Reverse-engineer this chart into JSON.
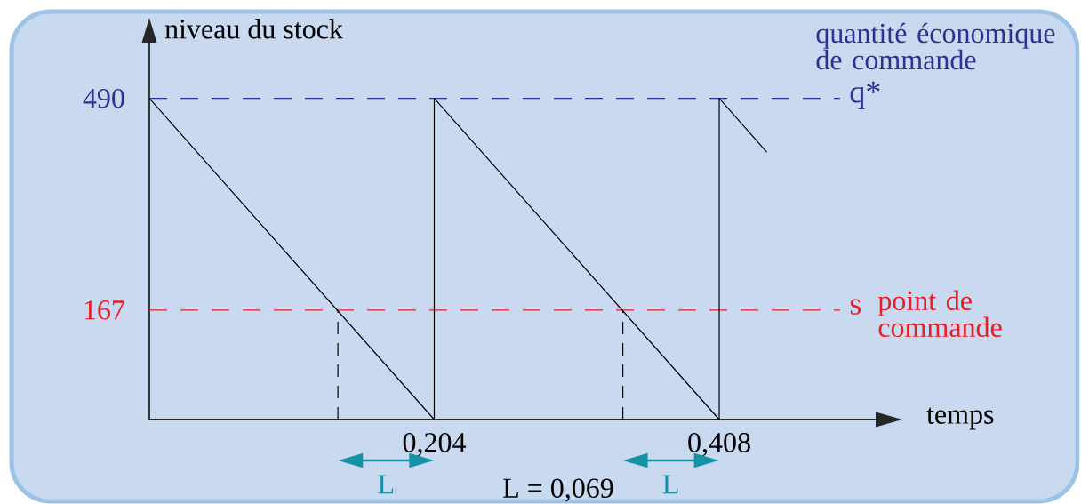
{
  "chart_data": {
    "type": "line",
    "xlabel": "temps",
    "ylabel": "niveau du stock",
    "xlim": [
      0,
      0.52
    ],
    "ylim": [
      0,
      575
    ],
    "xticks": [
      {
        "value": 0.204,
        "label": "0,204"
      },
      {
        "value": 0.408,
        "label": "0,408"
      }
    ],
    "yticks": [
      167,
      490
    ],
    "marker": "none",
    "series": [
      {
        "color": "#000000",
        "x": [
          0,
          0.204,
          0.204,
          0.408,
          0.408,
          0.442
        ],
        "values": [
          490,
          0,
          490,
          0,
          490,
          408
        ]
      },
      {
        "color": "#000000",
        "line_style": "dashed",
        "x": [
          0.135,
          0.135
        ],
        "values": [
          0,
          167
        ]
      },
      {
        "color": "#000000",
        "line_style": "dashed",
        "x": [
          0.339,
          0.339
        ],
        "values": [
          0,
          167
        ]
      }
    ],
    "ref_lines": [
      {
        "axis": "y",
        "value": 490,
        "label": "q*",
        "color": "#2e3192",
        "line_style": "dashed"
      },
      {
        "axis": "y",
        "value": 167,
        "label": "s",
        "color": "#ed1c24",
        "line_style": "dashed"
      }
    ],
    "annotations": [
      "quantité économique de commande",
      "point de commande",
      "L",
      "L = 0,069",
      "L"
    ]
  }
}
